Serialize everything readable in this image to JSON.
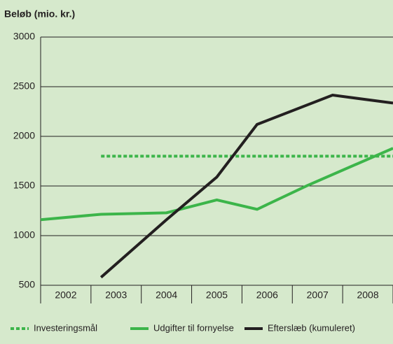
{
  "chart_data": {
    "type": "line",
    "y_label": "Beløb (mio. kr.)",
    "xlim": [
      2001.5,
      2008.5
    ],
    "xticks": [
      2002,
      2003,
      2004,
      2005,
      2006,
      2007,
      2008
    ],
    "ylim": [
      500,
      3000
    ],
    "yticks": [
      500,
      1000,
      1500,
      2000,
      2500,
      3000
    ],
    "grid": true,
    "legend": "bottom",
    "series": [
      {
        "name": "Investeringsmål",
        "color": "#3cb54a",
        "style": "dotted",
        "x": [
          2002.7,
          2008.5
        ],
        "values": [
          1800,
          1800
        ]
      },
      {
        "name": "Udgifter til fornyelse",
        "color": "#3cb54a",
        "style": "solid",
        "x": [
          2001.5,
          2002.7,
          2004,
          2005,
          2005.8,
          2006.8,
          2008.5
        ],
        "values": [
          1160,
          1215,
          1230,
          1360,
          1265,
          1505,
          1880
        ]
      },
      {
        "name": "Efterslæb (kumuleret)",
        "color": "#231f20",
        "style": "solid",
        "x": [
          2002.7,
          2004,
          2005,
          2005.8,
          2007.3,
          2008.5
        ],
        "values": [
          580,
          1160,
          1590,
          2120,
          2415,
          2335
        ]
      }
    ]
  }
}
